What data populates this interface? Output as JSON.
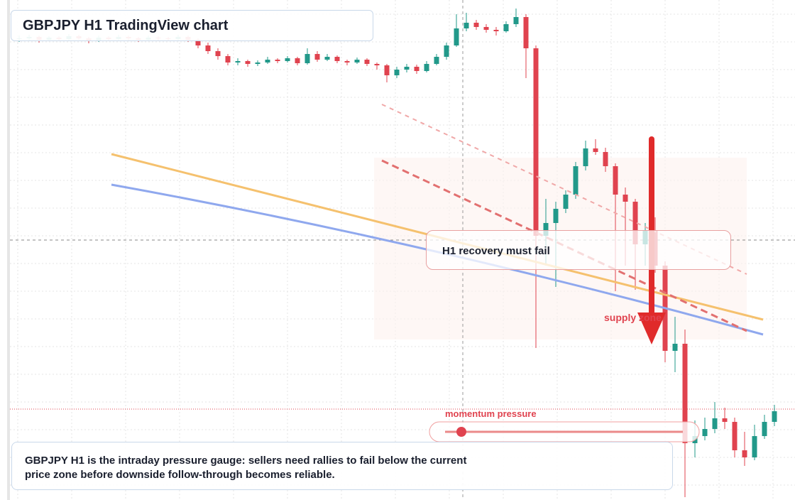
{
  "chart_data": {
    "type": "candlestick",
    "title": "GBPJPY H1 TradingView chart",
    "annotations": [
      "H1 recovery must fail",
      "supply zone",
      "momentum pressure"
    ],
    "description": "GBPJPY H1 is the intraday pressure gauge: sellers need rallies to fail below the current price zone before downside follow-through becomes reliable.",
    "up_color": "#22998a",
    "down_color": "#e0434f",
    "ylim": [
      0,
      704
    ],
    "ohlc": [
      [
        649,
        654,
        645,
        650
      ],
      [
        650,
        655,
        647,
        652
      ],
      [
        652,
        654,
        644,
        648
      ],
      [
        648,
        653,
        646,
        651
      ],
      [
        651,
        653,
        646,
        649
      ],
      [
        649,
        656,
        647,
        653
      ],
      [
        653,
        655,
        648,
        650
      ],
      [
        650,
        652,
        643,
        647
      ],
      [
        647,
        654,
        645,
        651
      ],
      [
        651,
        653,
        646,
        649
      ],
      [
        649,
        655,
        647,
        652
      ],
      [
        652,
        654,
        647,
        650
      ],
      [
        650,
        652,
        645,
        648
      ],
      [
        648,
        654,
        646,
        651
      ],
      [
        651,
        653,
        647,
        650
      ],
      [
        650,
        652,
        646,
        649
      ],
      [
        649,
        655,
        647,
        652
      ],
      [
        652,
        654,
        645,
        648
      ],
      [
        648,
        650,
        636,
        640
      ],
      [
        640,
        644,
        628,
        632
      ],
      [
        632,
        636,
        620,
        625
      ],
      [
        625,
        628,
        612,
        616
      ],
      [
        616,
        622,
        612,
        618
      ],
      [
        618,
        620,
        610,
        614
      ],
      [
        614,
        619,
        611,
        616
      ],
      [
        616,
        624,
        614,
        620
      ],
      [
        620,
        622,
        615,
        618
      ],
      [
        618,
        625,
        616,
        622
      ],
      [
        622,
        624,
        612,
        615
      ],
      [
        615,
        636,
        613,
        628
      ],
      [
        628,
        632,
        617,
        620
      ],
      [
        620,
        628,
        618,
        624
      ],
      [
        624,
        626,
        615,
        618
      ],
      [
        618,
        620,
        612,
        616
      ],
      [
        616,
        623,
        614,
        620
      ],
      [
        620,
        622,
        611,
        614
      ],
      [
        614,
        616,
        606,
        612
      ],
      [
        612,
        614,
        588,
        598
      ],
      [
        598,
        610,
        594,
        606
      ],
      [
        606,
        614,
        602,
        610
      ],
      [
        610,
        613,
        600,
        604
      ],
      [
        604,
        618,
        602,
        614
      ],
      [
        614,
        628,
        612,
        624
      ],
      [
        624,
        644,
        620,
        640
      ],
      [
        640,
        684,
        638,
        664
      ],
      [
        664,
        686,
        660,
        672
      ],
      [
        672,
        676,
        662,
        666
      ],
      [
        666,
        670,
        658,
        662
      ],
      [
        662,
        666,
        654,
        660
      ],
      [
        660,
        674,
        658,
        670
      ],
      [
        670,
        692,
        666,
        680
      ],
      [
        680,
        684,
        594,
        636
      ],
      [
        636,
        640,
        214,
        372
      ],
      [
        372,
        424,
        330,
        390
      ],
      [
        390,
        420,
        300,
        410
      ],
      [
        410,
        436,
        404,
        430
      ],
      [
        430,
        476,
        424,
        470
      ],
      [
        470,
        506,
        464,
        495
      ],
      [
        495,
        508,
        486,
        490
      ],
      [
        490,
        496,
        462,
        470
      ],
      [
        470,
        474,
        294,
        430
      ],
      [
        430,
        440,
        330,
        420
      ],
      [
        420,
        424,
        296,
        360
      ],
      [
        360,
        390,
        330,
        380
      ],
      [
        380,
        398,
        320,
        330
      ],
      [
        330,
        336,
        194,
        210
      ],
      [
        210,
        258,
        180,
        220
      ],
      [
        220,
        240,
        4,
        80
      ],
      [
        80,
        112,
        60,
        90
      ],
      [
        90,
        116,
        84,
        100
      ],
      [
        100,
        138,
        94,
        115
      ],
      [
        115,
        130,
        100,
        110
      ],
      [
        110,
        116,
        60,
        70
      ],
      [
        70,
        96,
        48,
        60
      ],
      [
        60,
        106,
        56,
        90
      ],
      [
        90,
        120,
        86,
        110
      ],
      [
        110,
        134,
        104,
        125
      ]
    ]
  }
}
